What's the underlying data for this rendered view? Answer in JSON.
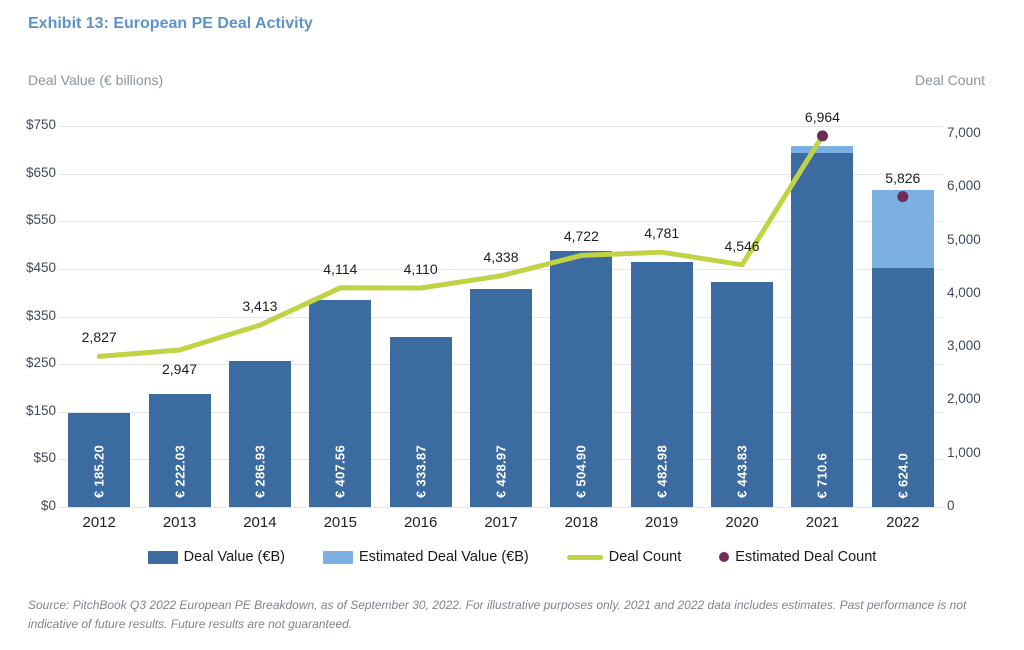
{
  "title": "Exhibit 13: European PE Deal Activity",
  "axes": {
    "left_title": "Deal Value (€ billions)",
    "right_title": "Deal Count",
    "left_ticks": [
      "$750",
      "$650",
      "$550",
      "$450",
      "$350",
      "$250",
      "$150",
      "$50",
      "$0"
    ],
    "right_ticks": [
      "7,000",
      "6,000",
      "5,000",
      "4,000",
      "3,000",
      "2,000",
      "1,000",
      "0"
    ]
  },
  "legend": {
    "items": [
      {
        "label": "Deal Value (€B)",
        "swatch": "bar",
        "color": "#3B6BA1"
      },
      {
        "label": "Estimated Deal Value (€B)",
        "swatch": "bar",
        "color": "#7CB0E2"
      },
      {
        "label": "Deal Count",
        "swatch": "line",
        "color": "#C0D345"
      },
      {
        "label": "Estimated Deal Count",
        "swatch": "dot",
        "color": "#6C2D58"
      }
    ]
  },
  "source_note": "Source: PitchBook Q3 2022 European PE Breakdown, as of September 30, 2022. For illustrative purposes only. 2021 and 2022 data includes estimates. Past performance is not indicative of future results. Future results are not guaranteed.",
  "colors": {
    "deal_value_bar": "#3B6BA1",
    "estimated_deal_value_bar": "#7CB0E2",
    "deal_count_line": "#C0D345",
    "estimated_deal_count_dot": "#6C2D58",
    "title_text": "#5E93C8",
    "axis_title_text": "#8B949E",
    "tick_text": "#3E4A59",
    "gridline": "#E5E6E8"
  },
  "chart_data": {
    "type": "bar",
    "subtype": "stacked-bar-with-line-combo",
    "title": "Exhibit 13: European PE Deal Activity",
    "xlabel": "",
    "ylabel_left": "Deal Value (€ billions)",
    "ylabel_right": "Deal Count",
    "ylim_left": [
      0,
      750
    ],
    "ylim_right": [
      0,
      7000
    ],
    "grid": true,
    "legend_position": "bottom",
    "categories": [
      "2012",
      "2013",
      "2014",
      "2015",
      "2016",
      "2017",
      "2018",
      "2019",
      "2020",
      "2021",
      "2022"
    ],
    "series": [
      {
        "name": "Deal Value (€B)",
        "type": "bar",
        "axis": "left",
        "color": "#3B6BA1",
        "values": [
          185.2,
          222.03,
          286.93,
          407.56,
          333.87,
          428.97,
          504.9,
          482.98,
          443.83,
          697.0,
          470.0
        ]
      },
      {
        "name": "Estimated Deal Value (€B)",
        "type": "bar",
        "axis": "left",
        "stacked_on": "Deal Value (€B)",
        "color": "#7CB0E2",
        "values": [
          0,
          0,
          0,
          0,
          0,
          0,
          0,
          0,
          0,
          13.6,
          154.0
        ]
      },
      {
        "name": "Deal Count",
        "type": "line",
        "axis": "right",
        "color": "#C0D345",
        "values": [
          2827,
          2947,
          3413,
          4114,
          4110,
          4338,
          4722,
          4781,
          4546,
          6964,
          null
        ]
      },
      {
        "name": "Estimated Deal Count",
        "type": "point",
        "axis": "right",
        "color": "#6C2D58",
        "values": [
          null,
          null,
          null,
          null,
          null,
          null,
          null,
          null,
          null,
          6964,
          5826
        ]
      }
    ],
    "bar_totals": [
      185.2,
      222.03,
      286.93,
      407.56,
      333.87,
      428.97,
      504.9,
      482.98,
      443.83,
      710.6,
      624.0
    ],
    "bar_value_labels": [
      "€ 185.20",
      "€ 222.03",
      "€ 286.93",
      "€ 407.56",
      "€ 333.87",
      "€ 428.97",
      "€ 504.90",
      "€ 482.98",
      "€ 443.83",
      "€ 710.6",
      "€ 624.0"
    ],
    "count_labels": [
      "2,827",
      "2,947",
      "3,413",
      "4,114",
      "4,110",
      "4,338",
      "4,722",
      "4,781",
      "4,546",
      "6,964",
      "5,826"
    ],
    "count_label_side": [
      "above",
      "below",
      "above",
      "above",
      "above",
      "above",
      "above",
      "above",
      "above",
      "above",
      "above"
    ]
  }
}
